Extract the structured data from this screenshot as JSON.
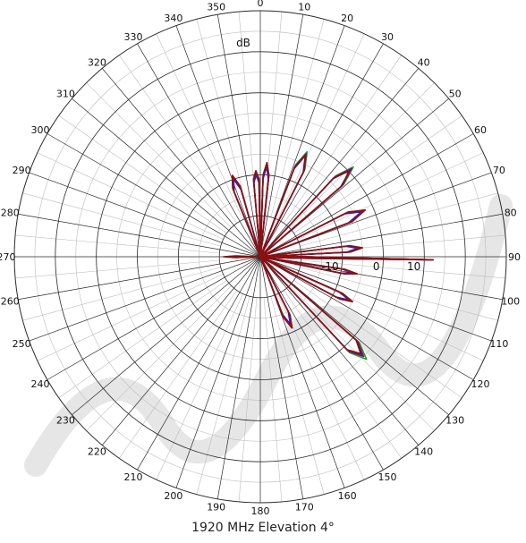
{
  "caption": "1920 MHz Elevation 4°",
  "chart_data": {
    "type": "polar",
    "title": "1920 MHz Elevation 4°",
    "unit": "dB",
    "angle_ticks": [
      0,
      10,
      20,
      30,
      40,
      50,
      60,
      70,
      80,
      90,
      100,
      110,
      120,
      130,
      140,
      150,
      160,
      170,
      180,
      190,
      200,
      210,
      220,
      230,
      240,
      250,
      260,
      270,
      280,
      290,
      300,
      310,
      320,
      330,
      340,
      350
    ],
    "radial_range": [
      -30,
      30
    ],
    "radial_ticks": [
      -20,
      -10,
      0,
      10,
      20,
      30
    ],
    "radial_labels": [
      "-10",
      "0",
      "10"
    ],
    "minor_angle_step": 5,
    "colors": {
      "grid": "#2a2a2a",
      "minor_grid": "#bdbdbd",
      "dark_red": "#8b1010",
      "blue": "#1a1ae0",
      "green": "#2a9a2a",
      "purple": "#6a1a6a",
      "watermark": "#dcdcdc"
    },
    "series": [
      {
        "color": "#2a9a2a",
        "points": [
          [
            0,
            -30
          ],
          [
            2,
            -10
          ],
          [
            4,
            -7
          ],
          [
            6,
            -10
          ],
          [
            8,
            -30
          ],
          [
            18,
            -30
          ],
          [
            21,
            -6
          ],
          [
            24,
            -2
          ],
          [
            27,
            -6
          ],
          [
            30,
            -30
          ],
          [
            40,
            -30
          ],
          [
            43,
            -3
          ],
          [
            46,
            1.5
          ],
          [
            49,
            -3
          ],
          [
            52,
            -30
          ],
          [
            60,
            -30
          ],
          [
            63,
            -6
          ],
          [
            66,
            -2
          ],
          [
            69,
            -6
          ],
          [
            72,
            -30
          ],
          [
            81,
            -30
          ],
          [
            83,
            -8
          ],
          [
            85,
            -5
          ],
          [
            87,
            -8
          ],
          [
            89,
            -30
          ],
          [
            89.5,
            -22
          ],
          [
            91,
            12
          ],
          [
            92.5,
            -22
          ],
          [
            95,
            -30
          ],
          [
            97,
            -30
          ],
          [
            98.5,
            -9
          ],
          [
            100,
            -6
          ],
          [
            101.5,
            -9
          ],
          [
            103,
            -30
          ],
          [
            112,
            -30
          ],
          [
            114,
            -8
          ],
          [
            116,
            -5
          ],
          [
            118,
            -8
          ],
          [
            120,
            -30
          ],
          [
            128,
            -30
          ],
          [
            131,
            2
          ],
          [
            134,
            6
          ],
          [
            137,
            2
          ],
          [
            140,
            -30
          ],
          [
            150,
            -30
          ],
          [
            153,
            -14
          ],
          [
            156,
            -11
          ],
          [
            159,
            -14
          ],
          [
            162,
            -30
          ],
          [
            268,
            -30
          ],
          [
            270,
            -22
          ],
          [
            272,
            -30
          ],
          [
            335,
            -30
          ],
          [
            338,
            -12
          ],
          [
            341,
            -9
          ],
          [
            344,
            -12
          ],
          [
            347,
            -30
          ],
          [
            352,
            -30
          ],
          [
            355,
            -11
          ],
          [
            357,
            -9
          ],
          [
            359,
            -11
          ],
          [
            360,
            -30
          ]
        ]
      },
      {
        "color": "#1a1ae0",
        "points": [
          [
            0,
            -30
          ],
          [
            2,
            -11
          ],
          [
            4,
            -8
          ],
          [
            6,
            -11
          ],
          [
            8,
            -30
          ],
          [
            18,
            -30
          ],
          [
            21,
            -7
          ],
          [
            24,
            -3
          ],
          [
            27,
            -7
          ],
          [
            30,
            -30
          ],
          [
            40,
            -30
          ],
          [
            43,
            -4
          ],
          [
            46,
            0.5
          ],
          [
            49,
            -4
          ],
          [
            52,
            -30
          ],
          [
            60,
            -30
          ],
          [
            63,
            -7
          ],
          [
            66,
            -3
          ],
          [
            69,
            -7
          ],
          [
            72,
            -30
          ],
          [
            81,
            -30
          ],
          [
            83,
            -9
          ],
          [
            85,
            -6
          ],
          [
            87,
            -9
          ],
          [
            89,
            -30
          ],
          [
            89.5,
            -22
          ],
          [
            91,
            12
          ],
          [
            92.5,
            -22
          ],
          [
            95,
            -30
          ],
          [
            97,
            -30
          ],
          [
            98.5,
            -10
          ],
          [
            100,
            -7
          ],
          [
            101.5,
            -10
          ],
          [
            103,
            -30
          ],
          [
            112,
            -30
          ],
          [
            114,
            -9
          ],
          [
            116,
            -6
          ],
          [
            118,
            -9
          ],
          [
            120,
            -30
          ],
          [
            128,
            -30
          ],
          [
            131,
            1
          ],
          [
            134,
            4.5
          ],
          [
            137,
            1
          ],
          [
            140,
            -30
          ],
          [
            150,
            -30
          ],
          [
            153,
            -15
          ],
          [
            156,
            -12
          ],
          [
            159,
            -15
          ],
          [
            162,
            -30
          ],
          [
            268,
            -30
          ],
          [
            270,
            -22
          ],
          [
            272,
            -30
          ],
          [
            335,
            -30
          ],
          [
            338,
            -13
          ],
          [
            341,
            -10
          ],
          [
            344,
            -13
          ],
          [
            347,
            -30
          ],
          [
            352,
            -30
          ],
          [
            355,
            -12
          ],
          [
            357,
            -10
          ],
          [
            359,
            -12
          ],
          [
            360,
            -30
          ]
        ]
      },
      {
        "color": "#6a1a6a",
        "points": [
          [
            0,
            -30
          ],
          [
            2,
            -10.5
          ],
          [
            4,
            -7.5
          ],
          [
            6,
            -10.5
          ],
          [
            8,
            -30
          ],
          [
            18,
            -30
          ],
          [
            21,
            -6.5
          ],
          [
            24,
            -2.5
          ],
          [
            27,
            -6.5
          ],
          [
            30,
            -30
          ],
          [
            40,
            -30
          ],
          [
            43,
            -3.5
          ],
          [
            46,
            1
          ],
          [
            49,
            -3.5
          ],
          [
            52,
            -30
          ],
          [
            60,
            -30
          ],
          [
            63,
            -6.5
          ],
          [
            66,
            -2.5
          ],
          [
            69,
            -6.5
          ],
          [
            72,
            -30
          ],
          [
            81,
            -30
          ],
          [
            83,
            -8.5
          ],
          [
            85,
            -5.5
          ],
          [
            87,
            -8.5
          ],
          [
            89,
            -30
          ],
          [
            89.5,
            -22
          ],
          [
            91,
            12
          ],
          [
            92.5,
            -22
          ],
          [
            95,
            -30
          ],
          [
            97,
            -30
          ],
          [
            98.5,
            -9.5
          ],
          [
            100,
            -6.5
          ],
          [
            101.5,
            -9.5
          ],
          [
            103,
            -30
          ],
          [
            112,
            -30
          ],
          [
            114,
            -8.5
          ],
          [
            116,
            -5.5
          ],
          [
            118,
            -8.5
          ],
          [
            120,
            -30
          ],
          [
            128,
            -30
          ],
          [
            131,
            1.5
          ],
          [
            134,
            5
          ],
          [
            137,
            1.5
          ],
          [
            140,
            -30
          ],
          [
            150,
            -30
          ],
          [
            153,
            -14.5
          ],
          [
            156,
            -11.5
          ],
          [
            159,
            -14.5
          ],
          [
            162,
            -30
          ],
          [
            268,
            -30
          ],
          [
            270,
            -22
          ],
          [
            272,
            -30
          ],
          [
            335,
            -30
          ],
          [
            338,
            -12.5
          ],
          [
            341,
            -9.5
          ],
          [
            344,
            -12.5
          ],
          [
            347,
            -30
          ],
          [
            352,
            -30
          ],
          [
            355,
            -11.5
          ],
          [
            357,
            -9.5
          ],
          [
            359,
            -11.5
          ],
          [
            360,
            -30
          ]
        ]
      },
      {
        "color": "#8b1010",
        "points": [
          [
            0,
            -30
          ],
          [
            2,
            -10
          ],
          [
            4,
            -7
          ],
          [
            6,
            -10
          ],
          [
            8,
            -30
          ],
          [
            18,
            -30
          ],
          [
            21,
            -6.5
          ],
          [
            24,
            -3
          ],
          [
            27,
            -6.5
          ],
          [
            30,
            -30
          ],
          [
            40,
            -30
          ],
          [
            43,
            -3.5
          ],
          [
            46,
            0
          ],
          [
            49,
            -3.5
          ],
          [
            52,
            -30
          ],
          [
            60,
            -30
          ],
          [
            63,
            -6
          ],
          [
            66,
            -2
          ],
          [
            69,
            -6
          ],
          [
            72,
            -30
          ],
          [
            81,
            -30
          ],
          [
            83,
            -8
          ],
          [
            85,
            -5
          ],
          [
            87,
            -8
          ],
          [
            89,
            -30
          ],
          [
            89.5,
            -22
          ],
          [
            91,
            12.2
          ],
          [
            92.5,
            -22
          ],
          [
            95,
            -30
          ],
          [
            97,
            -30
          ],
          [
            98.5,
            -9
          ],
          [
            100,
            -6
          ],
          [
            101.5,
            -9
          ],
          [
            103,
            -30
          ],
          [
            112,
            -30
          ],
          [
            114,
            -8
          ],
          [
            116,
            -5
          ],
          [
            118,
            -8
          ],
          [
            120,
            -30
          ],
          [
            128,
            -30
          ],
          [
            131,
            1
          ],
          [
            134,
            4
          ],
          [
            137,
            1
          ],
          [
            140,
            -30
          ],
          [
            150,
            -30
          ],
          [
            153,
            -14
          ],
          [
            156,
            -11
          ],
          [
            159,
            -14
          ],
          [
            162,
            -30
          ],
          [
            264,
            -30
          ],
          [
            268,
            -24
          ],
          [
            270,
            -21
          ],
          [
            272,
            -24
          ],
          [
            276,
            -30
          ],
          [
            335,
            -30
          ],
          [
            338,
            -12
          ],
          [
            341,
            -9
          ],
          [
            344,
            -12
          ],
          [
            347,
            -30
          ],
          [
            352,
            -30
          ],
          [
            355,
            -11
          ],
          [
            357,
            -9
          ],
          [
            359,
            -11
          ],
          [
            360,
            -30
          ]
        ]
      }
    ]
  }
}
